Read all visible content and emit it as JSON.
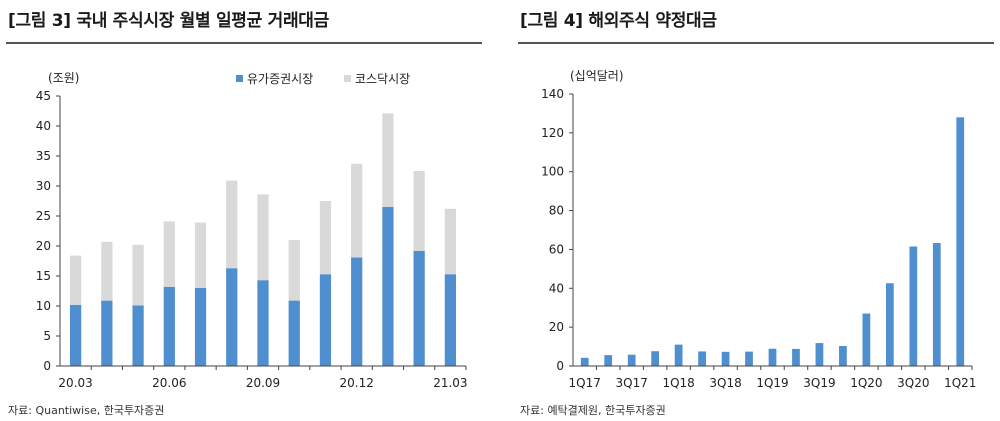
{
  "figures": [
    {
      "title": "[그림 3] 국내 주식시장 월별 일평균 거래대금",
      "source": "자료: Quantiwise, 한국투자증권"
    },
    {
      "title": "[그림 4] 해외주식 약정대금",
      "source": "자료: 예탁결제원, 한국투자증권"
    }
  ],
  "chart_data": [
    {
      "type": "bar",
      "stacked": true,
      "unit": "(조원)",
      "categories": [
        "20.03",
        "20.04",
        "20.05",
        "20.06",
        "20.07",
        "20.08",
        "20.09",
        "20.10",
        "20.11",
        "20.12",
        "21.01",
        "21.02",
        "21.03"
      ],
      "tick_labels": [
        "20.03",
        "20.06",
        "20.09",
        "20.12",
        "21.03"
      ],
      "series": [
        {
          "name": "유가증권시장",
          "color": "#4f8fcf",
          "values": [
            10.2,
            10.9,
            10.1,
            13.2,
            13.0,
            16.3,
            14.3,
            10.9,
            15.3,
            18.1,
            26.5,
            19.2,
            15.3
          ]
        },
        {
          "name": "코스닥시장",
          "color": "#d9d9d9",
          "values": [
            8.2,
            9.8,
            10.1,
            10.9,
            10.9,
            14.6,
            14.3,
            10.1,
            12.2,
            15.6,
            15.6,
            13.3,
            10.9
          ]
        }
      ],
      "yticks": [
        0,
        5,
        10,
        15,
        20,
        25,
        30,
        35,
        40,
        45
      ],
      "ylim": [
        0,
        45
      ],
      "legend": "top",
      "grid": false
    },
    {
      "type": "bar",
      "unit": "(십억달러)",
      "categories": [
        "1Q17",
        "2Q17",
        "3Q17",
        "4Q17",
        "1Q18",
        "2Q18",
        "3Q18",
        "4Q18",
        "1Q19",
        "2Q19",
        "3Q19",
        "4Q19",
        "1Q20",
        "2Q20",
        "3Q20",
        "4Q20",
        "1Q21"
      ],
      "tick_labels": [
        "1Q17",
        "3Q17",
        "1Q18",
        "3Q18",
        "1Q19",
        "3Q19",
        "1Q20",
        "3Q20",
        "1Q21"
      ],
      "series": [
        {
          "name": "",
          "color": "#4f8fcf",
          "values": [
            4.2,
            5.6,
            5.8,
            7.6,
            11.0,
            7.5,
            7.3,
            7.4,
            8.9,
            8.8,
            11.8,
            10.3,
            27.0,
            42.6,
            61.5,
            63.3,
            128.0
          ]
        }
      ],
      "yticks": [
        0,
        20,
        40,
        60,
        80,
        100,
        120,
        140
      ],
      "ylim": [
        0,
        140
      ],
      "grid": false
    }
  ]
}
